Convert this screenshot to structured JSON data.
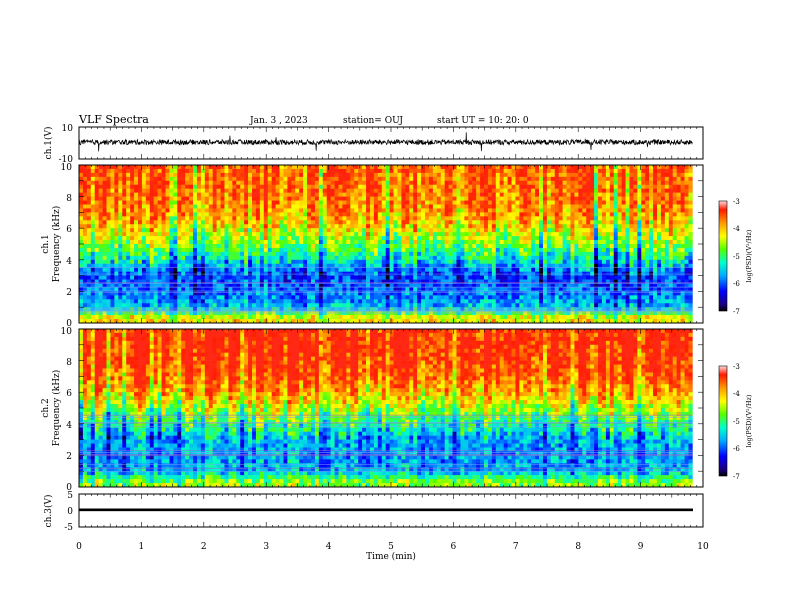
{
  "header": {
    "title": "VLF Spectra",
    "date": "Jan. 3 , 2023",
    "station": "station= OUJ",
    "start_ut": "start UT = 10: 20: 0"
  },
  "chart_data": [
    {
      "type": "line",
      "panel": "ch1-waveform",
      "ylabel": "ch.1(V)",
      "ylim": [
        -10,
        10
      ],
      "yticks": [
        "10",
        "-10"
      ],
      "xlim": [
        0,
        10
      ],
      "series": [
        {
          "baseline_v": 0.5,
          "noise_v": 1.6,
          "spike_v": 4.5
        }
      ]
    },
    {
      "type": "heatmap",
      "panel": "ch1-spectrogram",
      "ylabel_channel": "ch.1",
      "ylabel": "Frequency (kHz)",
      "ylim": [
        0,
        10
      ],
      "yticks": [
        "0",
        "2",
        "4",
        "6",
        "8",
        "10"
      ],
      "xlim": [
        0,
        9.83
      ],
      "colorbar": {
        "label": "log(PSD)(V²/Hz)",
        "range": [
          -7,
          -3
        ],
        "ticks": [
          "-3",
          "-4",
          "-5",
          "-6",
          "-7"
        ]
      },
      "profile": [
        {
          "freq_khz": 0.3,
          "log_psd": -4.2
        },
        {
          "freq_khz": 1,
          "log_psd": -5.6
        },
        {
          "freq_khz": 2,
          "log_psd": -5.9
        },
        {
          "freq_khz": 3,
          "log_psd": -6.1
        },
        {
          "freq_khz": 4,
          "log_psd": -5.3
        },
        {
          "freq_khz": 5,
          "log_psd": -4.7
        },
        {
          "freq_khz": 6,
          "log_psd": -4.2
        },
        {
          "freq_khz": 7,
          "log_psd": -3.8
        },
        {
          "freq_khz": 8,
          "log_psd": -3.6
        },
        {
          "freq_khz": 10,
          "log_psd": -3.5
        }
      ]
    },
    {
      "type": "heatmap",
      "panel": "ch2-spectrogram",
      "ylabel_channel": "ch.2",
      "ylabel": "Frequency (kHz)",
      "ylim": [
        0,
        10
      ],
      "yticks": [
        "0",
        "2",
        "4",
        "6",
        "8",
        "10"
      ],
      "xlim": [
        0,
        9.83
      ],
      "colorbar": {
        "label": "log(PSD)(V²/Hz)",
        "range": [
          -7,
          -3
        ],
        "ticks": [
          "-3",
          "-4",
          "-5",
          "-6",
          "-7"
        ]
      },
      "profile": [
        {
          "freq_khz": 0.3,
          "log_psd": -4.6
        },
        {
          "freq_khz": 1,
          "log_psd": -5.6
        },
        {
          "freq_khz": 2,
          "log_psd": -5.7
        },
        {
          "freq_khz": 3,
          "log_psd": -5.6
        },
        {
          "freq_khz": 4,
          "log_psd": -5.0
        },
        {
          "freq_khz": 5,
          "log_psd": -4.4
        },
        {
          "freq_khz": 6,
          "log_psd": -3.8
        },
        {
          "freq_khz": 7,
          "log_psd": -3.4
        },
        {
          "freq_khz": 8,
          "log_psd": -3.2
        },
        {
          "freq_khz": 10,
          "log_psd": -3.1
        }
      ]
    },
    {
      "type": "line",
      "panel": "ch3-waveform",
      "ylabel": "ch.3(V)",
      "ylim": [
        -5,
        5
      ],
      "yticks": [
        "5",
        "0",
        "-5"
      ],
      "xlim": [
        0,
        10
      ],
      "series": [
        {
          "baseline_v": 0.2,
          "thickness_v": 0.5
        }
      ],
      "xlabel": "Time (min)",
      "xticks": [
        "0",
        "1",
        "2",
        "3",
        "4",
        "5",
        "6",
        "7",
        "8",
        "9",
        "10"
      ]
    }
  ]
}
